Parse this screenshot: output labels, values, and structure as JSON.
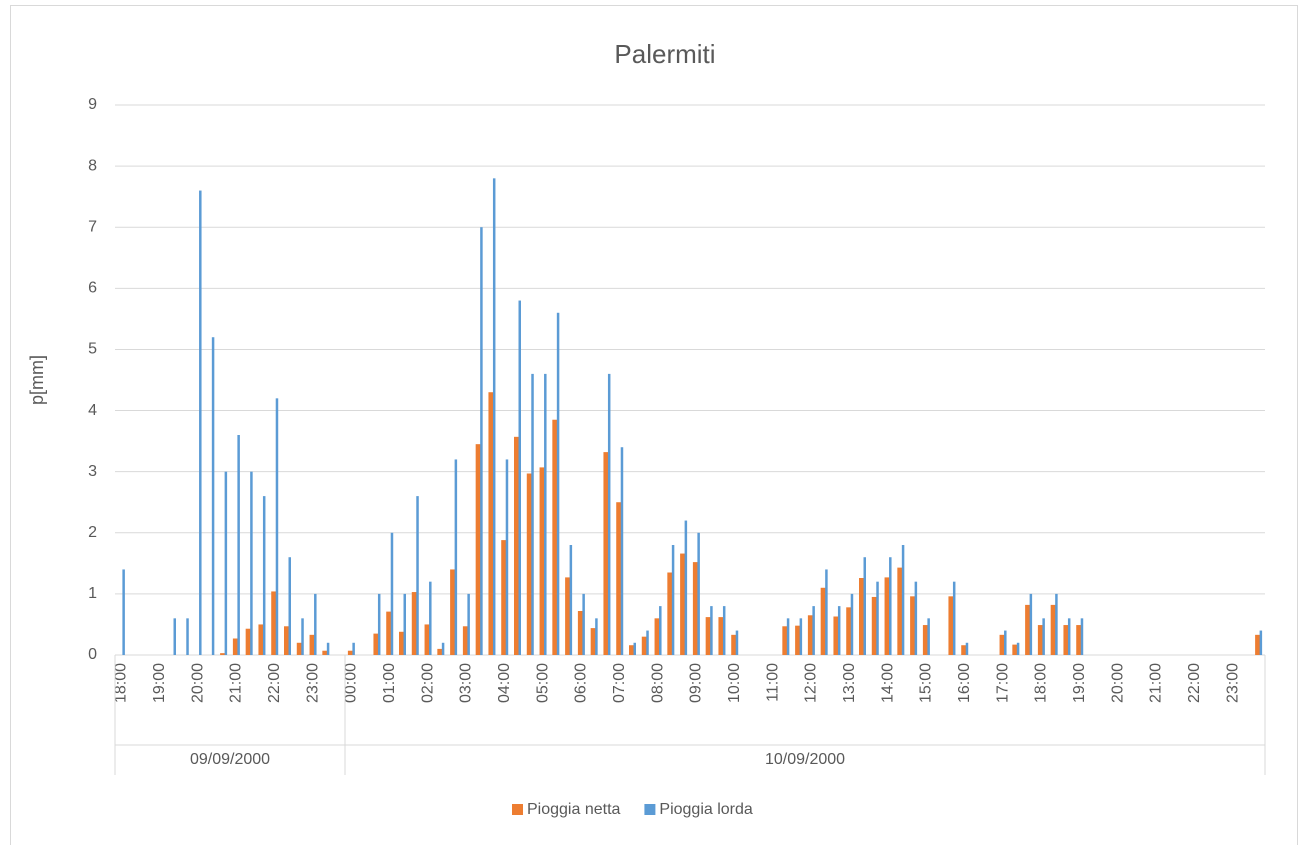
{
  "chart_data": {
    "type": "bar",
    "title": "Palermiti",
    "y_label": "p[mm]",
    "categories": [
      "18:00",
      null,
      null,
      "19:00",
      null,
      null,
      "20:00",
      null,
      null,
      "21:00",
      null,
      null,
      "22:00",
      null,
      null,
      "23:00",
      null,
      null,
      "00:00",
      null,
      null,
      "01:00",
      null,
      null,
      "02:00",
      null,
      null,
      "03:00",
      null,
      null,
      "04:00",
      null,
      null,
      "05:00",
      null,
      null,
      "06:00",
      null,
      null,
      "07:00",
      null,
      null,
      "08:00",
      null,
      null,
      "09:00",
      null,
      null,
      "10:00",
      null,
      null,
      "11:00",
      null,
      null,
      "12:00",
      null,
      null,
      "13:00",
      null,
      null,
      "14:00",
      null,
      null,
      "15:00",
      null,
      null,
      "16:00",
      null,
      null,
      "17:00",
      null,
      null,
      "18:00",
      null,
      null,
      "19:00",
      null,
      null,
      "20:00",
      null,
      null,
      "21:00",
      null,
      null,
      "22:00",
      null,
      null,
      "23:00",
      null,
      null
    ],
    "x_groups": [
      {
        "label": "09/09/2000",
        "count": 18
      },
      {
        "label": "10/09/2000",
        "count": 72
      }
    ],
    "series": [
      {
        "name": "Pioggia netta",
        "color": "#ed7d31",
        "values": [
          0,
          0,
          0,
          0,
          0,
          0,
          0,
          0,
          0.03,
          0.27,
          0.43,
          0.5,
          1.04,
          0.47,
          0.2,
          0.33,
          0.07,
          0,
          0.07,
          0,
          0.35,
          0.71,
          0.38,
          1.03,
          0.5,
          0.1,
          1.4,
          0.47,
          3.45,
          4.3,
          1.88,
          3.57,
          2.97,
          3.07,
          3.85,
          1.27,
          0.72,
          0.44,
          3.32,
          2.5,
          0.16,
          0.3,
          0.6,
          1.35,
          1.66,
          1.52,
          0.62,
          0.62,
          0.33,
          0,
          0,
          0,
          0.47,
          0.48,
          0.65,
          1.1,
          0.63,
          0.78,
          1.26,
          0.95,
          1.27,
          1.43,
          0.96,
          0.49,
          0,
          0.96,
          0.16,
          0,
          0,
          0.33,
          0.17,
          0.82,
          0.49,
          0.82,
          0.49,
          0.49,
          0,
          0,
          0,
          0,
          0,
          0,
          0,
          0,
          0,
          0,
          0,
          0,
          0,
          0.33
        ]
      },
      {
        "name": "Pioggia lorda",
        "color": "#5b9bd5",
        "values": [
          1.4,
          0,
          0,
          0,
          0.6,
          0.6,
          7.6,
          5.2,
          3.0,
          3.6,
          3.0,
          2.6,
          4.2,
          1.6,
          0.6,
          1.0,
          0.2,
          0,
          0.2,
          0,
          1.0,
          2.0,
          1.0,
          2.6,
          1.2,
          0.2,
          3.2,
          1.0,
          7.0,
          7.8,
          3.2,
          5.8,
          4.6,
          4.6,
          5.6,
          1.8,
          1.0,
          0.6,
          4.6,
          3.4,
          0.2,
          0.4,
          0.8,
          1.8,
          2.2,
          2.0,
          0.8,
          0.8,
          0.4,
          0,
          0,
          0,
          0.6,
          0.6,
          0.8,
          1.4,
          0.8,
          1.0,
          1.6,
          1.2,
          1.6,
          1.8,
          1.2,
          0.6,
          0,
          1.2,
          0.2,
          0,
          0,
          0.4,
          0.2,
          1.0,
          0.6,
          1.0,
          0.6,
          0.6,
          0,
          0,
          0,
          0,
          0,
          0,
          0,
          0,
          0,
          0,
          0,
          0,
          0,
          0.4
        ]
      }
    ],
    "ylim": [
      0,
      9
    ],
    "yticks": [
      0,
      1,
      2,
      3,
      4,
      5,
      6,
      7,
      8,
      9
    ],
    "grid": true,
    "legend": "bottom"
  }
}
